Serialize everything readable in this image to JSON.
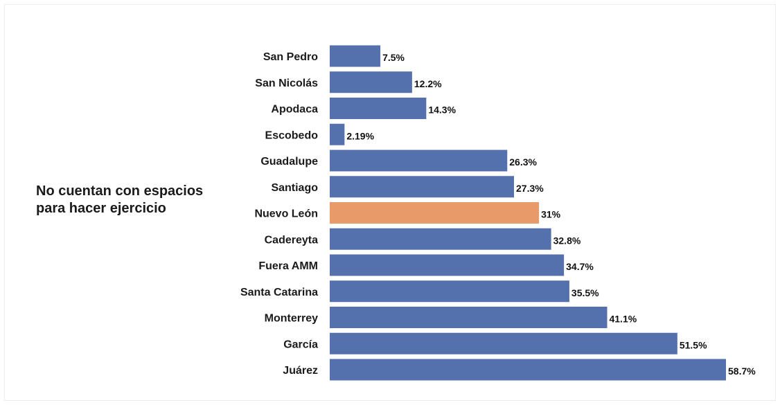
{
  "side_label": "No cuentan con espacios\npara hacer ejercicio",
  "colors": {
    "bar": "#5470ad",
    "highlight": "#e89a68",
    "text": "#1a1a1a"
  },
  "chart_data": {
    "type": "bar",
    "orientation": "horizontal",
    "title": "",
    "xlabel": "",
    "ylabel": "",
    "xlim": [
      0,
      58.7
    ],
    "grid": false,
    "legend": "none",
    "highlight_category": "Nuevo León",
    "categories": [
      "San Pedro",
      "San Nicolás",
      "Apodaca",
      "Escobedo",
      "Guadalupe",
      "Santiago",
      "Nuevo León",
      "Cadereyta",
      "Fuera AMM",
      "Santa Catarina",
      "Monterrey",
      "García",
      "Juárez"
    ],
    "values": [
      7.5,
      12.2,
      14.3,
      2.19,
      26.3,
      27.3,
      31,
      32.8,
      34.7,
      35.5,
      41.1,
      51.5,
      58.7
    ],
    "value_labels": [
      "7.5%",
      "12.2%",
      "14.3%",
      "2.19%",
      "26.3%",
      "27.3%",
      "31%",
      "32.8%",
      "34.7%",
      "35.5%",
      "41.1%",
      "51.5%",
      "58.7%"
    ]
  }
}
